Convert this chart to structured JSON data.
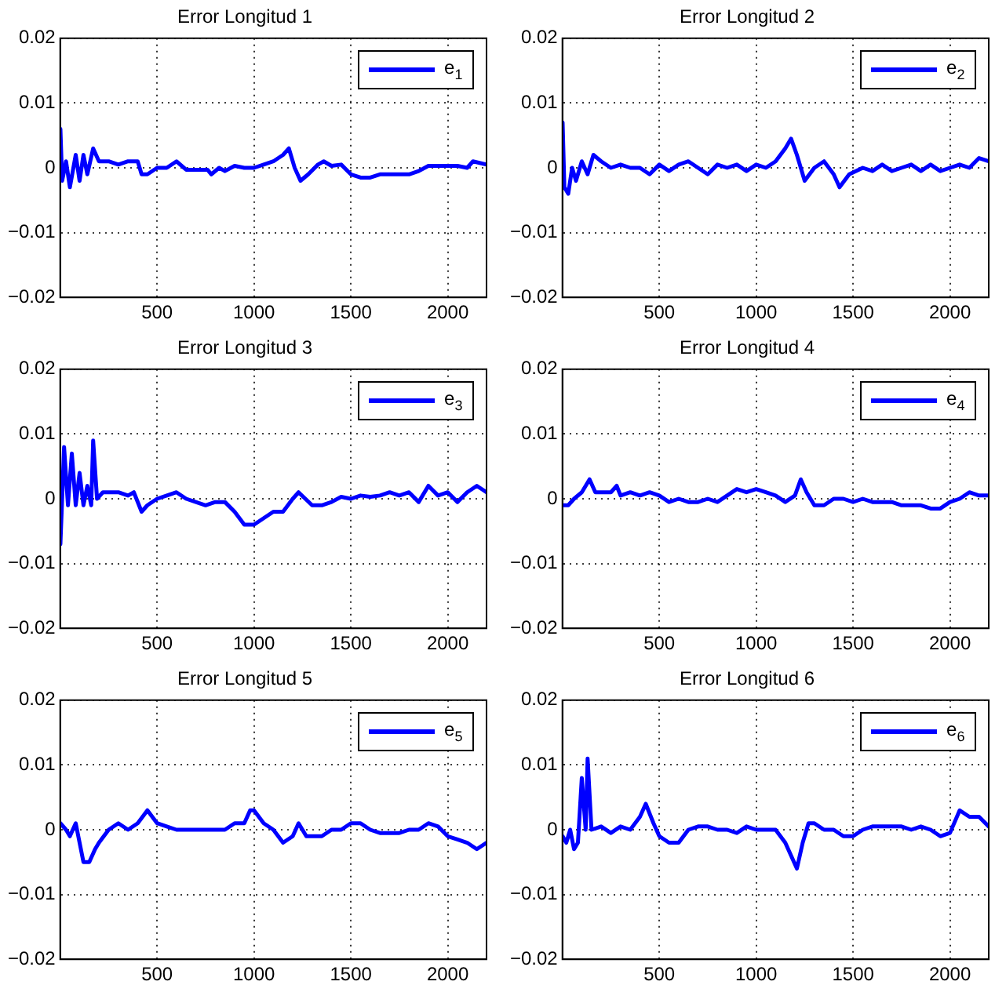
{
  "chart_data": [
    {
      "type": "line",
      "title": "Error Longitud 1",
      "x": [
        1,
        10,
        30,
        50,
        80,
        100,
        120,
        140,
        170,
        200,
        250,
        300,
        350,
        400,
        420,
        450,
        500,
        550,
        600,
        650,
        700,
        760,
        780,
        820,
        850,
        900,
        950,
        1000,
        1050,
        1100,
        1150,
        1180,
        1210,
        1240,
        1280,
        1330,
        1360,
        1400,
        1450,
        1500,
        1550,
        1600,
        1650,
        1700,
        1800,
        1850,
        1900,
        1950,
        2000,
        2050,
        2100,
        2130,
        2200
      ],
      "series": [
        {
          "name": "e$_{1}$",
          "color": "#0000ff",
          "values": [
            0.006,
            -0.002,
            0.001,
            -0.003,
            0.002,
            -0.002,
            0.002,
            -0.001,
            0.003,
            0.001,
            0.001,
            0.0005,
            0.001,
            0.001,
            -0.001,
            -0.001,
            0,
            0,
            0.001,
            -0.0003,
            -0.0003,
            -0.0003,
            -0.001,
            0,
            -0.0005,
            0.0003,
            0,
            0,
            0.0005,
            0.001,
            0.002,
            0.003,
            0,
            -0.002,
            -0.001,
            0.0005,
            0.001,
            0.0003,
            0.0005,
            -0.001,
            -0.0015,
            -0.0015,
            -0.001,
            -0.001,
            -0.001,
            -0.0005,
            0.0003,
            0.0003,
            0.0003,
            0.0003,
            0,
            0.001,
            0.0005
          ]
        }
      ],
      "xlim": [
        0,
        2200
      ],
      "xticks": [
        500,
        1000,
        1500,
        2000
      ],
      "ylim": [
        -0.02,
        0.02
      ],
      "yticks": [
        -0.02,
        -0.01,
        0,
        0.01,
        0.02
      ],
      "grid": true,
      "legend": "top right",
      "line_style": "solid",
      "marker": "none"
    },
    {
      "type": "line",
      "title": "Error Longitud 2",
      "x": [
        1,
        10,
        30,
        50,
        70,
        100,
        130,
        160,
        200,
        250,
        300,
        350,
        400,
        450,
        500,
        550,
        600,
        650,
        700,
        750,
        800,
        850,
        900,
        950,
        1000,
        1050,
        1100,
        1150,
        1180,
        1210,
        1250,
        1300,
        1350,
        1400,
        1430,
        1480,
        1550,
        1600,
        1650,
        1700,
        1750,
        1800,
        1850,
        1900,
        1950,
        2000,
        2050,
        2100,
        2150,
        2200
      ],
      "series": [
        {
          "name": "e$_{2}$",
          "color": "#0000ff",
          "values": [
            0.007,
            -0.003,
            -0.004,
            0,
            -0.002,
            0.001,
            -0.001,
            0.002,
            0.001,
            0,
            0.0005,
            0,
            0,
            -0.001,
            0.0005,
            -0.0005,
            0.0005,
            0.001,
            0,
            -0.001,
            0.0005,
            0,
            0.0005,
            -0.0005,
            0.0005,
            0,
            0.001,
            0.003,
            0.0045,
            0.002,
            -0.002,
            0,
            0.001,
            -0.001,
            -0.003,
            -0.001,
            0,
            -0.0005,
            0.0005,
            -0.0005,
            0,
            0.0005,
            -0.0005,
            0.0005,
            -0.0005,
            0,
            0.0005,
            0,
            0.0015,
            0.001
          ]
        }
      ],
      "xlim": [
        0,
        2200
      ],
      "xticks": [
        500,
        1000,
        1500,
        2000
      ],
      "ylim": [
        -0.02,
        0.02
      ],
      "yticks": [
        -0.02,
        -0.01,
        0,
        0.01,
        0.02
      ],
      "grid": true,
      "legend": "top right",
      "line_style": "solid",
      "marker": "none"
    },
    {
      "type": "line",
      "title": "Error Longitud 3",
      "x": [
        1,
        10,
        20,
        40,
        60,
        80,
        100,
        120,
        140,
        160,
        170,
        190,
        220,
        260,
        300,
        350,
        380,
        420,
        450,
        500,
        550,
        600,
        650,
        700,
        750,
        800,
        850,
        900,
        950,
        1000,
        1050,
        1100,
        1150,
        1200,
        1230,
        1300,
        1350,
        1400,
        1450,
        1500,
        1550,
        1600,
        1650,
        1700,
        1750,
        1800,
        1850,
        1900,
        1950,
        2000,
        2050,
        2100,
        2150,
        2200
      ],
      "series": [
        {
          "name": "e$_{3}$",
          "color": "#0000ff",
          "values": [
            -0.007,
            0,
            0.008,
            -0.001,
            0.007,
            -0.001,
            0.004,
            -0.001,
            0.002,
            -0.001,
            0.009,
            0,
            0.001,
            0.001,
            0.001,
            0.0005,
            0.001,
            -0.002,
            -0.001,
            0,
            0.0005,
            0.001,
            0,
            -0.0005,
            -0.001,
            -0.0005,
            -0.0005,
            -0.002,
            -0.004,
            -0.004,
            -0.003,
            -0.002,
            -0.002,
            0,
            0.001,
            -0.001,
            -0.001,
            -0.0005,
            0.0003,
            0,
            0.0005,
            0.0003,
            0.0005,
            0.001,
            0.0005,
            0.001,
            -0.0005,
            0.002,
            0.0005,
            0.001,
            -0.0005,
            0.001,
            0.002,
            0.001
          ]
        }
      ],
      "xlim": [
        0,
        2200
      ],
      "xticks": [
        500,
        1000,
        1500,
        2000
      ],
      "ylim": [
        -0.02,
        0.02
      ],
      "yticks": [
        -0.02,
        -0.01,
        0,
        0.01,
        0.02
      ],
      "grid": true,
      "legend": "top right",
      "line_style": "solid",
      "marker": "none"
    },
    {
      "type": "line",
      "title": "Error Longitud 4",
      "x": [
        1,
        30,
        60,
        100,
        140,
        170,
        200,
        250,
        280,
        300,
        350,
        400,
        450,
        500,
        550,
        600,
        650,
        700,
        750,
        800,
        850,
        900,
        950,
        1000,
        1050,
        1100,
        1150,
        1200,
        1230,
        1260,
        1300,
        1350,
        1400,
        1450,
        1500,
        1550,
        1600,
        1650,
        1700,
        1750,
        1800,
        1850,
        1900,
        1950,
        2000,
        2050,
        2100,
        2150,
        2200
      ],
      "series": [
        {
          "name": "e$_{4}$",
          "color": "#0000ff",
          "values": [
            -0.001,
            -0.001,
            0,
            0.001,
            0.003,
            0.001,
            0.001,
            0.001,
            0.002,
            0.0005,
            0.001,
            0.0005,
            0.001,
            0.0005,
            -0.0005,
            0,
            -0.0005,
            -0.0005,
            0,
            -0.0005,
            0.0005,
            0.0015,
            0.001,
            0.0015,
            0.001,
            0.0005,
            -0.0005,
            0.0005,
            0.003,
            0.001,
            -0.001,
            -0.001,
            0,
            0,
            -0.0005,
            0,
            -0.0005,
            -0.0005,
            -0.0005,
            -0.001,
            -0.001,
            -0.001,
            -0.0015,
            -0.0015,
            -0.0005,
            0,
            0.001,
            0.0005,
            0.0005
          ]
        }
      ],
      "xlim": [
        0,
        2200
      ],
      "xticks": [
        500,
        1000,
        1500,
        2000
      ],
      "ylim": [
        -0.02,
        0.02
      ],
      "yticks": [
        -0.02,
        -0.01,
        0,
        0.01,
        0.02
      ],
      "grid": true,
      "legend": "top right",
      "line_style": "solid",
      "marker": "none"
    },
    {
      "type": "line",
      "title": "Error Longitud 5",
      "x": [
        1,
        30,
        50,
        80,
        100,
        120,
        150,
        180,
        200,
        250,
        300,
        350,
        400,
        450,
        500,
        550,
        600,
        650,
        700,
        750,
        800,
        850,
        900,
        950,
        980,
        1000,
        1050,
        1100,
        1150,
        1200,
        1230,
        1270,
        1300,
        1350,
        1400,
        1450,
        1500,
        1550,
        1600,
        1650,
        1700,
        1750,
        1800,
        1850,
        1900,
        1950,
        2000,
        2050,
        2100,
        2150,
        2200
      ],
      "series": [
        {
          "name": "e$_{5}$",
          "color": "#0000ff",
          "values": [
            0.001,
            0,
            -0.001,
            0.001,
            -0.002,
            -0.005,
            -0.005,
            -0.003,
            -0.002,
            0,
            0.001,
            0,
            0.001,
            0.003,
            0.001,
            0.0005,
            0,
            0,
            0,
            0,
            0,
            0,
            0.001,
            0.001,
            0.003,
            0.003,
            0.001,
            0,
            -0.002,
            -0.001,
            0.001,
            -0.001,
            -0.001,
            -0.001,
            0,
            0,
            0.001,
            0.001,
            0,
            -0.0005,
            -0.0005,
            -0.0005,
            0,
            0,
            0.001,
            0.0005,
            -0.001,
            -0.0015,
            -0.002,
            -0.003,
            -0.002
          ]
        }
      ],
      "xlim": [
        0,
        2200
      ],
      "xticks": [
        500,
        1000,
        1500,
        2000
      ],
      "ylim": [
        -0.02,
        0.02
      ],
      "yticks": [
        -0.02,
        -0.01,
        0,
        0.01,
        0.02
      ],
      "grid": true,
      "legend": "top right",
      "line_style": "solid",
      "marker": "none"
    },
    {
      "type": "line",
      "title": "Error Longitud 6",
      "x": [
        1,
        20,
        40,
        60,
        80,
        100,
        120,
        130,
        150,
        200,
        250,
        300,
        350,
        400,
        430,
        470,
        500,
        550,
        600,
        650,
        700,
        750,
        800,
        850,
        900,
        950,
        1000,
        1050,
        1100,
        1150,
        1180,
        1210,
        1240,
        1270,
        1300,
        1350,
        1400,
        1450,
        1500,
        1550,
        1600,
        1650,
        1700,
        1750,
        1800,
        1850,
        1900,
        1950,
        2000,
        2050,
        2100,
        2150,
        2200
      ],
      "series": [
        {
          "name": "e$_{6}$",
          "color": "#0000ff",
          "values": [
            -0.001,
            -0.002,
            0,
            -0.003,
            -0.002,
            0.008,
            0,
            0.011,
            0,
            0.0005,
            -0.0005,
            0.0005,
            0,
            0.002,
            0.004,
            0.001,
            -0.001,
            -0.002,
            -0.002,
            0,
            0.0005,
            0.0005,
            0,
            0,
            -0.0005,
            0.0005,
            0,
            0,
            0,
            -0.002,
            -0.004,
            -0.006,
            -0.002,
            0.001,
            0.001,
            0,
            0,
            -0.001,
            -0.001,
            0,
            0.0005,
            0.0005,
            0.0005,
            0.0005,
            0,
            0.0005,
            0,
            -0.001,
            -0.0005,
            0.003,
            0.002,
            0.002,
            0.0005
          ]
        }
      ],
      "xlim": [
        0,
        2200
      ],
      "xticks": [
        500,
        1000,
        1500,
        2000
      ],
      "ylim": [
        -0.02,
        0.02
      ],
      "yticks": [
        -0.02,
        -0.01,
        0,
        0.01,
        0.02
      ],
      "grid": true,
      "legend": "top right",
      "line_style": "solid",
      "marker": "none"
    }
  ]
}
